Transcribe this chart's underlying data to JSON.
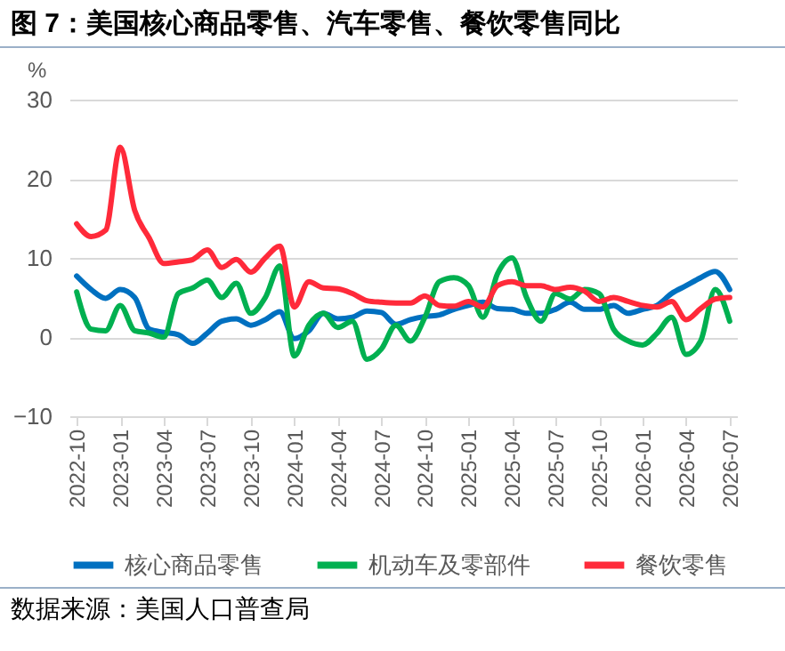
{
  "chart_data": {
    "type": "line",
    "title": "图 7：美国核心商品零售、汽车零售、餐饮零售同比",
    "ylabel": "%",
    "categories": [
      "2022-10",
      null,
      null,
      "2023-01",
      null,
      null,
      "2023-04",
      null,
      null,
      "2023-07",
      null,
      null,
      "2023-10",
      null,
      null,
      "2024-01",
      null,
      null,
      "2024-04",
      null,
      null,
      "2024-07",
      null,
      null,
      "2024-10",
      null,
      null,
      "2025-01",
      null,
      null,
      "2025-04",
      null,
      null,
      "2025-07",
      null,
      null,
      "2025-10",
      null,
      null,
      "2026-01",
      null,
      null,
      "2026-04",
      null,
      null,
      "2026-07"
    ],
    "series": [
      {
        "name": "核心商品零售",
        "color": "#0070c0",
        "values": [
          7.7,
          6,
          4.9,
          6,
          5,
          1,
          0.6,
          0.3,
          -0.8,
          0.5,
          2,
          2.3,
          1.5,
          2.2,
          3.2,
          -0.2,
          0.8,
          3,
          2.3,
          2.5,
          3.3,
          3.1,
          1.6,
          2.2,
          2.6,
          2.8,
          3.5,
          4,
          4.4,
          3.6,
          3.5,
          3,
          3,
          3.5,
          4.4,
          3.5,
          3.5,
          4,
          3,
          3.5,
          4,
          5.5,
          6.5,
          7.5,
          8.3,
          6
        ]
      },
      {
        "name": "机动车及零部件",
        "color": "#00b050",
        "values": [
          5.7,
          1,
          0.8,
          4,
          0.8,
          0.5,
          0,
          5.5,
          6.2,
          7.2,
          5,
          6.8,
          3,
          5,
          9,
          -2.4,
          1.5,
          3,
          1.2,
          2,
          -2.8,
          -1.5,
          1.5,
          -0.5,
          2.5,
          7,
          7.5,
          6.5,
          2.5,
          8,
          10,
          5,
          2,
          5.5,
          4.8,
          6,
          5.5,
          1,
          -0.5,
          -1,
          0.5,
          2.5,
          -2.2,
          -0.5,
          6,
          2
        ]
      },
      {
        "name": "餐饮零售",
        "color": "#ff2a3a",
        "values": [
          14.3,
          12.7,
          13.5,
          24,
          16,
          12.5,
          9.3,
          9.5,
          9.8,
          11,
          8.8,
          9.8,
          8.2,
          10,
          11.5,
          3.8,
          7,
          6.2,
          6.1,
          5.5,
          4.6,
          4.4,
          4.3,
          4.3,
          5.2,
          4,
          3.9,
          4.5,
          3.8,
          6.5,
          7,
          6.5,
          6.5,
          6,
          6.3,
          5.8,
          4.5,
          5,
          4.5,
          4,
          3.8,
          4.5,
          2.2,
          3.6,
          4.8,
          5
        ]
      }
    ],
    "ylim": [
      -10,
      30
    ],
    "yticks": [
      -10,
      0,
      10,
      20,
      30
    ],
    "grid": "y",
    "legend": "bottom",
    "line_style": "solid",
    "marker": "none",
    "annotations": [
      "数据来源：美国人口普查局"
    ]
  }
}
